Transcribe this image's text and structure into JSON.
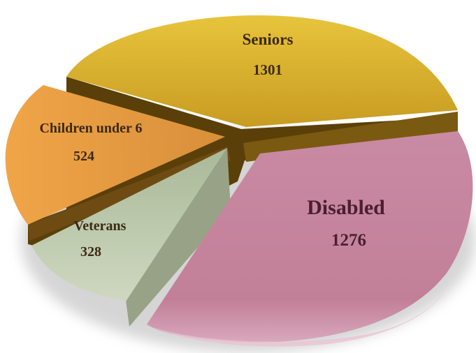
{
  "chart_data": {
    "type": "pie",
    "style": "3d-exploded",
    "slices": [
      {
        "label": "Seniors",
        "value": 1301,
        "color": "#d6ad2c"
      },
      {
        "label": "Disabled",
        "value": 1276,
        "color": "#c48aa0"
      },
      {
        "label": "Veterans",
        "value": 328,
        "color": "#b4c2a4"
      },
      {
        "label": "Children under 6",
        "value": 524,
        "color": "#e69a3e"
      }
    ],
    "legend": "none",
    "data_labels": "on-slice"
  }
}
